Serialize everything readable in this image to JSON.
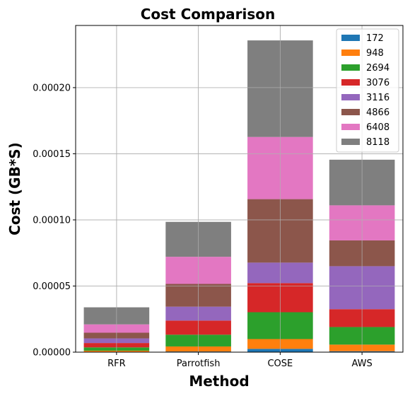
{
  "chart_data": {
    "type": "bar",
    "stacked": true,
    "title": "Cost Comparison",
    "xlabel": "Method",
    "ylabel": "Cost (GB*S)",
    "categories": [
      "RFR",
      "Parrotfish",
      "COSE",
      "AWS"
    ],
    "ylim": [
      0,
      0.000247
    ],
    "yticks": [
      0,
      5e-05,
      0.0001,
      0.00015,
      0.0002
    ],
    "ytick_labels": [
      "0.00000",
      "0.00005",
      "0.00010",
      "0.00015",
      "0.00020"
    ],
    "grid": true,
    "legend_position": "top-right",
    "series": [
      {
        "name": "172",
        "color": "#1f77b4",
        "values": [
          3e-07,
          5e-07,
          2.5e-06,
          7e-07
        ]
      },
      {
        "name": "948",
        "color": "#ff7f0e",
        "values": [
          8e-07,
          3.8e-06,
          7.4e-06,
          5e-06
        ]
      },
      {
        "name": "2694",
        "color": "#2ca02c",
        "values": [
          2.5e-06,
          8.9e-06,
          2.03e-05,
          1.33e-05
        ]
      },
      {
        "name": "3076",
        "color": "#d62728",
        "values": [
          3.3e-06,
          1.07e-05,
          2.2e-05,
          1.35e-05
        ]
      },
      {
        "name": "3116",
        "color": "#9467bd",
        "values": [
          3.5e-06,
          1.05e-05,
          1.55e-05,
          3.25e-05
        ]
      },
      {
        "name": "4866",
        "color": "#8c564b",
        "values": [
          4.3e-06,
          1.72e-05,
          4.8e-05,
          1.95e-05
        ]
      },
      {
        "name": "6408",
        "color": "#e377c2",
        "values": [
          6.3e-06,
          2.05e-05,
          4.7e-05,
          2.65e-05
        ]
      },
      {
        "name": "8118",
        "color": "#7f7f7f",
        "values": [
          1.29e-05,
          2.64e-05,
          7.3e-05,
          3.45e-05
        ]
      }
    ]
  }
}
